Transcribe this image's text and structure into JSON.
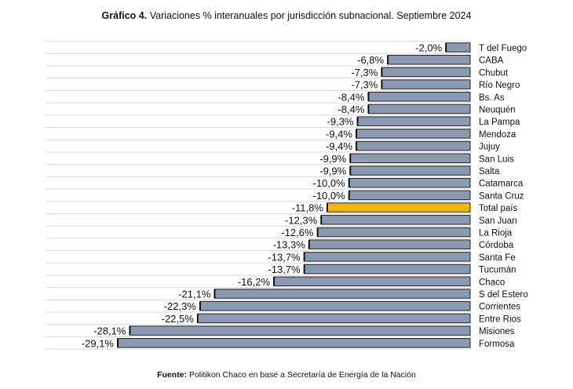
{
  "title": {
    "prefix": "Gráfico 4.",
    "text": "Variaciones % interanuales por jurisdicción subnacional. Septiembre 2024"
  },
  "source": {
    "prefix": "Fuente:",
    "text": "Politikon Chaco en base a Secretaría de Energía de la Nación"
  },
  "chart_data": {
    "type": "bar",
    "orientation": "horizontal",
    "categories": [
      "T del Fuego",
      "CABA",
      "Chubut",
      "Río Negro",
      "Bs. As",
      "Neuquén",
      "La Pampa",
      "Mendoza",
      "Jujuy",
      "San Luis",
      "Salta",
      "Catamarca",
      "Santa Cruz",
      "Total país",
      "San Juan",
      "La Rioja",
      "Córdoba",
      "Santa Fe",
      "Tucumán",
      "Chaco",
      "S del Estero",
      "Corrientes",
      "Entre Rios",
      "Misiones",
      "Formosa"
    ],
    "values": [
      -2.0,
      -6.8,
      -7.3,
      -7.3,
      -8.4,
      -8.4,
      -9.3,
      -9.4,
      -9.4,
      -9.9,
      -9.9,
      -10.0,
      -10.0,
      -11.8,
      -12.3,
      -12.6,
      -13.3,
      -13.7,
      -13.7,
      -16.2,
      -21.1,
      -22.3,
      -22.5,
      -28.1,
      -29.1
    ],
    "labels": [
      "-2,0%",
      "-6,8%",
      "-7,3%",
      "-7,3%",
      "-8,4%",
      "-8,4%",
      "-9,3%",
      "-9,4%",
      "-9,4%",
      "-9,9%",
      "-9,9%",
      "-10,0%",
      "-10,0%",
      "-11,8%",
      "-12,3%",
      "-12,6%",
      "-13,3%",
      "-13,7%",
      "-13,7%",
      "-16,2%",
      "-21,1%",
      "-22,3%",
      "-22,5%",
      "-28,1%",
      "-29,1%"
    ],
    "highlight": "Total país",
    "colors": {
      "bar": "#8a9ab3",
      "highlight": "#f2b705",
      "border": "#222222",
      "grid": "#d9d9d9"
    },
    "grid": true
  }
}
